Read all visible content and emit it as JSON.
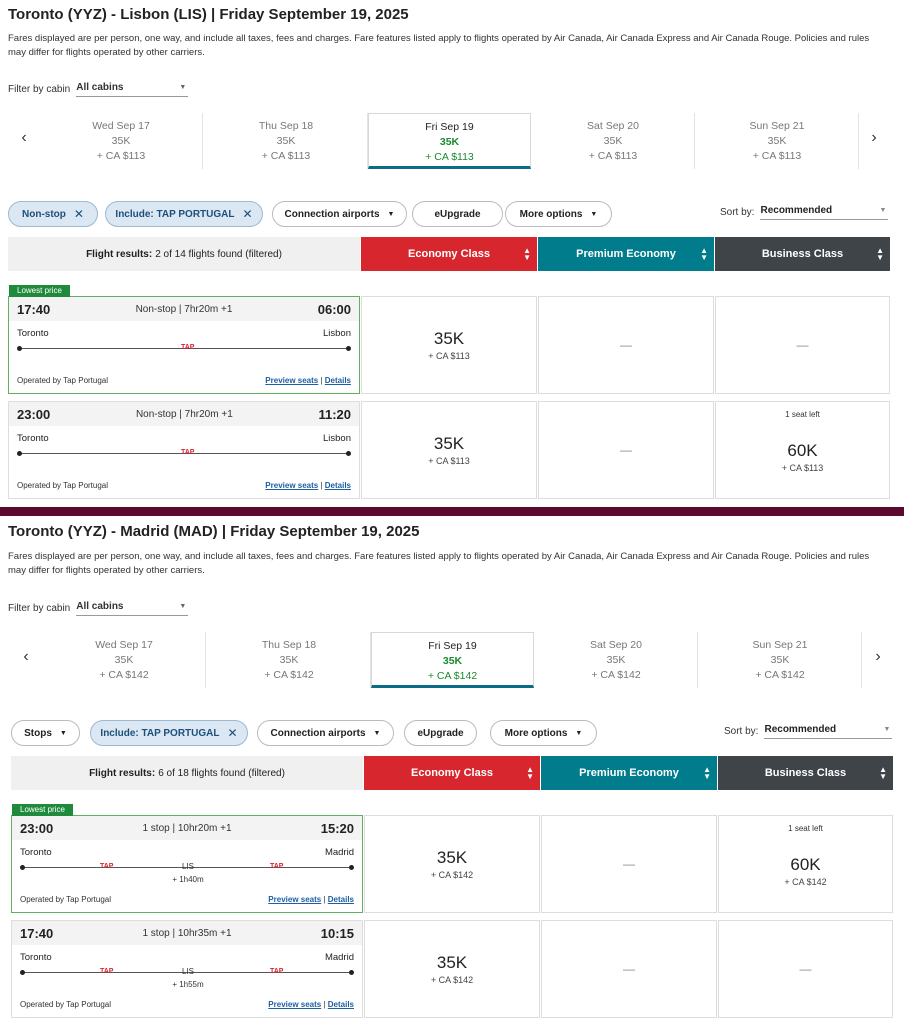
{
  "sections": [
    {
      "title": "Toronto (YYZ) - Lisbon (LIS)  |  Friday September 19, 2025",
      "description": "Fares displayed are per person, one way, and include all taxes, fees and charges. Fare features listed apply to flights operated by Air Canada, Air Canada Express and Air Canada Rouge. Policies and rules may differ for flights operated by other carriers.",
      "filter_label": "Filter by cabin",
      "filter_value": "All cabins",
      "dates": [
        {
          "day": "Wed Sep 17",
          "points": "35K",
          "cash": "+ CA $113"
        },
        {
          "day": "Thu Sep 18",
          "points": "35K",
          "cash": "+ CA $113"
        },
        {
          "day": "Fri Sep 19",
          "points": "35K",
          "cash": "+ CA $113"
        },
        {
          "day": "Sat Sep 20",
          "points": "35K",
          "cash": "+ CA $113"
        },
        {
          "day": "Sun Sep 21",
          "points": "35K",
          "cash": "+ CA $113"
        }
      ],
      "pills": [
        "Non-stop",
        "Include: TAP PORTUGAL",
        "Connection airports",
        "eUpgrade",
        "More options"
      ],
      "sort_label": "Sort by:",
      "sort_value": "Recommended",
      "results_bold": "Flight results:",
      "results_text": "2 of 14 flights found (filtered)",
      "cabins": [
        "Economy Class",
        "Premium Economy",
        "Business Class"
      ],
      "flights": [
        {
          "tag": "Lowest price",
          "dep": "17:40",
          "mid": "Non-stop | 7hr20m +1",
          "arr": "06:00",
          "from": "Toronto",
          "to": "Lisbon",
          "operated": "Operated by Tap Portugal",
          "preview": "Preview seats",
          "details": "Details",
          "eco_pts": "35K",
          "eco_cash": "+ CA $113",
          "pre": "—",
          "bus": "—"
        },
        {
          "dep": "23:00",
          "mid": "Non-stop | 7hr20m +1",
          "arr": "11:20",
          "from": "Toronto",
          "to": "Lisbon",
          "operated": "Operated by Tap Portugal",
          "preview": "Preview seats",
          "details": "Details",
          "eco_pts": "35K",
          "eco_cash": "+ CA $113",
          "pre": "—",
          "bus_seat": "1 seat left",
          "bus_pts": "60K",
          "bus_cash": "+ CA $113"
        }
      ]
    },
    {
      "title": "Toronto (YYZ) - Madrid (MAD)  |  Friday September 19, 2025",
      "description": "Fares displayed are per person, one way, and include all taxes, fees and charges. Fare features listed apply to flights operated by Air Canada, Air Canada Express and Air Canada Rouge. Policies and rules may differ for flights operated by other carriers.",
      "filter_label": "Filter by cabin",
      "filter_value": "All cabins",
      "dates": [
        {
          "day": "Wed Sep 17",
          "points": "35K",
          "cash": "+ CA $142"
        },
        {
          "day": "Thu Sep 18",
          "points": "35K",
          "cash": "+ CA $142"
        },
        {
          "day": "Fri Sep 19",
          "points": "35K",
          "cash": "+ CA $142"
        },
        {
          "day": "Sat Sep 20",
          "points": "35K",
          "cash": "+ CA $142"
        },
        {
          "day": "Sun Sep 21",
          "points": "35K",
          "cash": "+ CA $142"
        }
      ],
      "pills": [
        "Stops",
        "Include: TAP PORTUGAL",
        "Connection airports",
        "eUpgrade",
        "More options"
      ],
      "sort_label": "Sort by:",
      "sort_value": "Recommended",
      "results_bold": "Flight results:",
      "results_text": "6 of 18 flights found (filtered)",
      "cabins": [
        "Economy Class",
        "Premium Economy",
        "Business Class"
      ],
      "flights": [
        {
          "tag": "Lowest price",
          "dep": "23:00",
          "mid": "1 stop | 10hr20m +1",
          "arr": "15:20",
          "from": "Toronto",
          "to": "Madrid",
          "stop": "LIS",
          "layover": "+ 1h40m",
          "operated": "Operated by Tap Portugal",
          "preview": "Preview seats",
          "details": "Details",
          "eco_pts": "35K",
          "eco_cash": "+ CA $142",
          "pre": "—",
          "bus_seat": "1 seat left",
          "bus_pts": "60K",
          "bus_cash": "+ CA $142"
        },
        {
          "dep": "17:40",
          "mid": "1 stop | 10hr35m +1",
          "arr": "10:15",
          "from": "Toronto",
          "to": "Madrid",
          "stop": "LIS",
          "layover": "+ 1h55m",
          "operated": "Operated by Tap Portugal",
          "preview": "Preview seats",
          "details": "Details",
          "eco_pts": "35K",
          "eco_cash": "+ CA $142",
          "pre": "—",
          "bus": "—"
        }
      ]
    }
  ],
  "tap_logo": "TAP",
  "colors": {
    "economy": "#d8262f",
    "premium": "#007c8c",
    "business": "#3f4449",
    "selected_price": "#1a8a2e",
    "divider": "#5b0a2e"
  }
}
